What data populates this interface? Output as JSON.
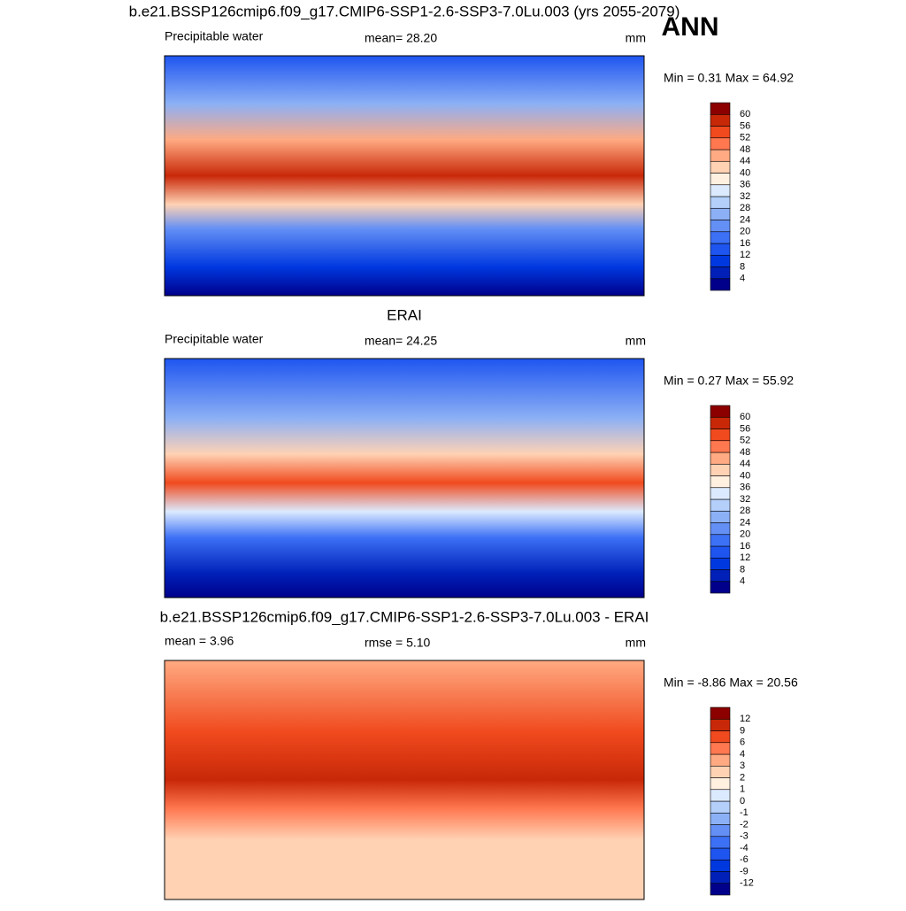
{
  "title": "b.e21.BSSP126cmip6.f09_g17.CMIP6-SSP1-2.6-SSP3-7.0Lu.003 (yrs 2055-2079)",
  "season": "ANN",
  "colorbar_colors": [
    "#00008b",
    "#0020b8",
    "#0038e0",
    "#1e55f0",
    "#3c70f5",
    "#6490f5",
    "#8cb0f5",
    "#b4d0fa",
    "#dceaff",
    "#fff0e0",
    "#ffd2b4",
    "#ffaa82",
    "#ff7850",
    "#f04a1e",
    "#c82808",
    "#8c0000"
  ],
  "panels": [
    {
      "left": "Precipitable water",
      "center": "mean=  28.20",
      "right": "mm",
      "minmax": "Min =   0.31 Max =  64.92",
      "colorbar_labels": [
        4,
        8,
        12,
        16,
        20,
        24,
        28,
        32,
        36,
        40,
        44,
        48,
        52,
        56,
        60
      ]
    },
    {
      "title": "ERAI",
      "left": "Precipitable water",
      "center": "mean=  24.25",
      "right": "mm",
      "minmax": "Min =   0.27 Max =  55.92",
      "colorbar_labels": [
        4,
        8,
        12,
        16,
        20,
        24,
        28,
        32,
        36,
        40,
        44,
        48,
        52,
        56,
        60
      ]
    },
    {
      "title": "b.e21.BSSP126cmip6.f09_g17.CMIP6-SSP1-2.6-SSP3-7.0Lu.003 - ERAI",
      "left": "mean =   3.96",
      "center": "rmse =   5.10",
      "right": "mm",
      "minmax": "Min =  -8.86 Max =  20.56",
      "colorbar_labels": [
        -12,
        -9,
        -6,
        -4,
        -3,
        -2,
        -1,
        0,
        1,
        2,
        3,
        4,
        6,
        9,
        12
      ]
    }
  ]
}
